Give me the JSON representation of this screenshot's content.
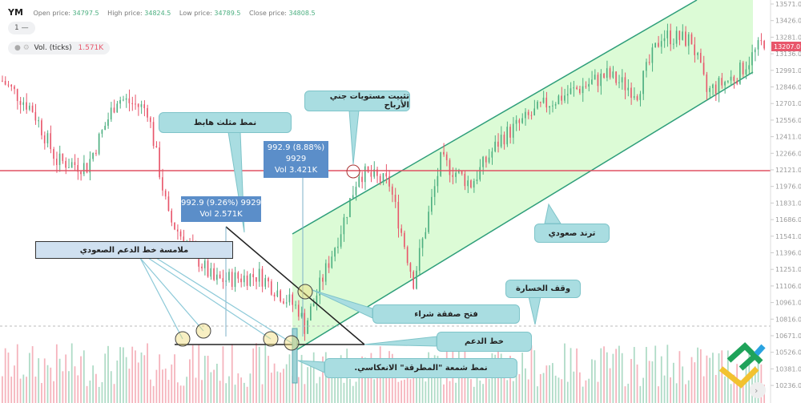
{
  "header": {
    "symbol": "YM",
    "open_label": "Open price:",
    "open": "34797.5",
    "high_label": "High price:",
    "high": "34824.5",
    "low_label": "Low price:",
    "low": "34789.5",
    "close_label": "Close price:",
    "close": "34808.5",
    "interval": "1 —",
    "vol_label": "Vol. (ticks)",
    "vol_value": "1.571K"
  },
  "annotations": {
    "descending_triangle": "نمط مثلث هابط",
    "take_profit": "تثبيت مستويات جني الأرباح",
    "support_touch": "ملامسة خط الدعم الصعودي",
    "uptrend": "ترند صعودي",
    "stop_loss": "وقف الخسارة",
    "buy_entry": "فتح صفقة شراء",
    "support_line": "خط الدعم",
    "hammer": "نمط شمعة \"المطرقة\" الانعكاسي."
  },
  "tooltips": [
    {
      "line1": "992.9 (8.88%) 9929",
      "line2": "Vol 3.421K"
    },
    {
      "line1": "992.9 (9.26%) 9929",
      "line2": "Vol 2.571K"
    }
  ],
  "colors": {
    "up": "#4caf80",
    "down": "#e8566b",
    "channel_fill": "#dcfbd6",
    "channel_line": "#2e9e7a",
    "resistance": "#e05263",
    "callout": "#a9dde1"
  },
  "chart_data": {
    "type": "candlestick",
    "y_ticks": [
      13571,
      13426,
      13281,
      13136,
      12991,
      12846,
      12701,
      12556,
      12411,
      12266,
      12121,
      11976,
      11831,
      11686,
      11541,
      11396,
      11251,
      11106,
      10961,
      10816,
      10671,
      10526,
      10381,
      10236
    ],
    "ylim": [
      10236,
      13571
    ],
    "current_price": "13207.0",
    "resistance_level": 12121,
    "stop_loss_level": 10760,
    "price_keypoints": [
      [
        0,
        12900
      ],
      [
        10,
        12650
      ],
      [
        18,
        12200
      ],
      [
        28,
        12150
      ],
      [
        38,
        12750
      ],
      [
        48,
        12650
      ],
      [
        55,
        11700
      ],
      [
        70,
        11150
      ],
      [
        85,
        11200
      ],
      [
        98,
        10900
      ],
      [
        100,
        10750
      ],
      [
        112,
        11600
      ],
      [
        118,
        12100
      ],
      [
        128,
        12000
      ],
      [
        136,
        11150
      ],
      [
        145,
        12200
      ],
      [
        155,
        12000
      ],
      [
        165,
        12400
      ],
      [
        180,
        12700
      ],
      [
        200,
        12950
      ],
      [
        210,
        12800
      ],
      [
        218,
        13300
      ],
      [
        228,
        13250
      ],
      [
        233,
        12800
      ],
      [
        243,
        12950
      ],
      [
        252,
        13250
      ]
    ]
  }
}
